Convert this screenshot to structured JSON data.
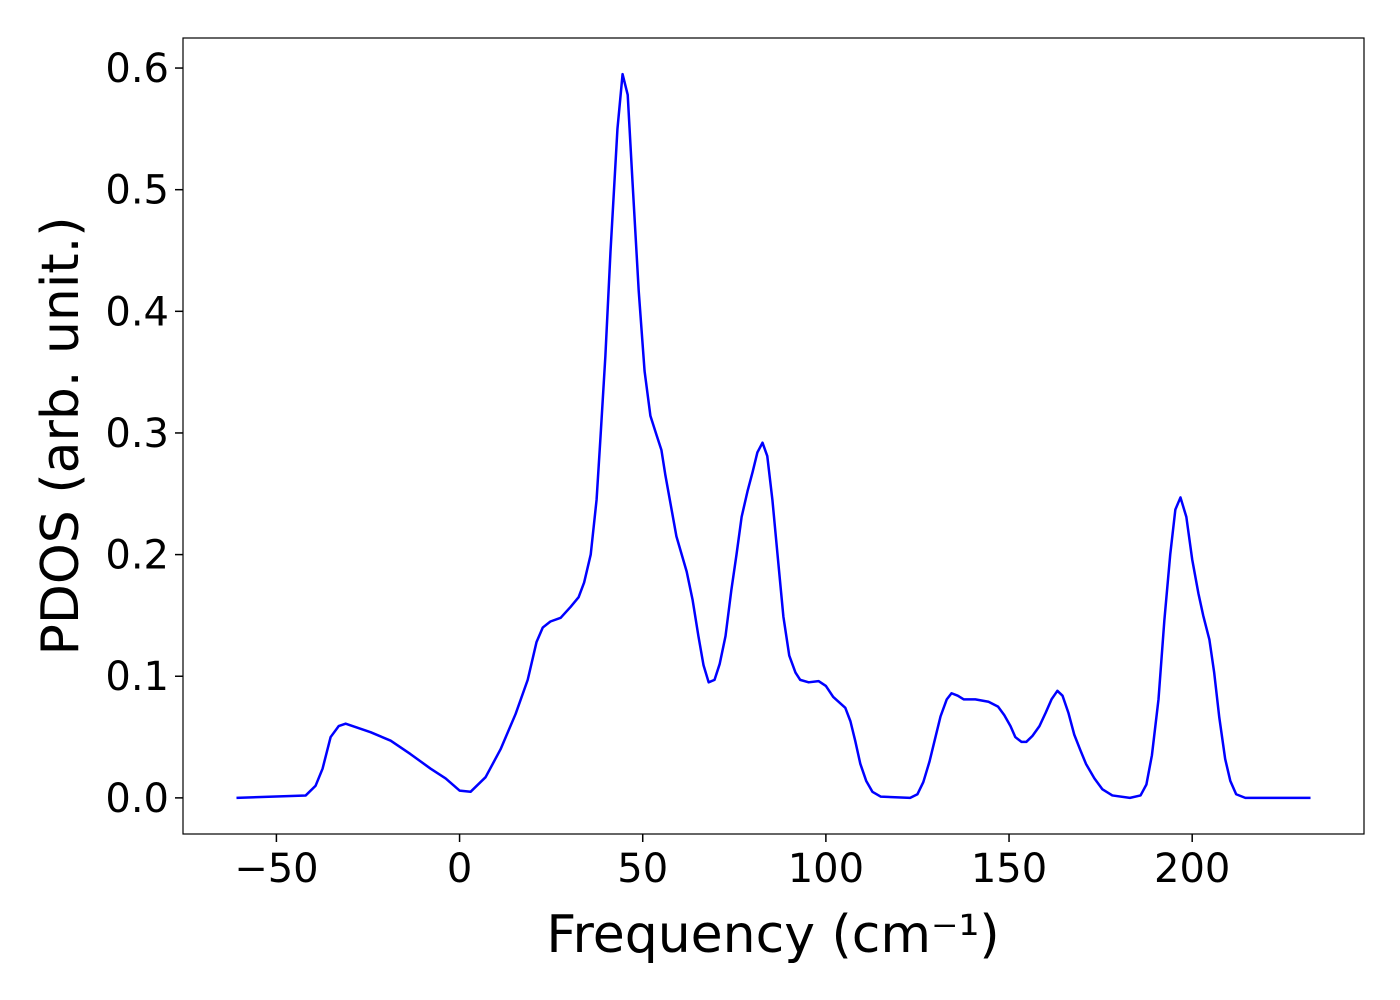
{
  "chart_data": {
    "type": "line",
    "xlabel": "Frequency (cm⁻¹)",
    "ylabel": "PDOS (arb. unit.)",
    "series": [
      {
        "name": "PDOS",
        "color": "#0000ff",
        "x": [
          -60.9,
          -42,
          -39.3,
          -37.4,
          -35.2,
          -33,
          -31.1,
          -24.3,
          -18.8,
          -13.4,
          -7.9,
          -3.8,
          0,
          3,
          7.1,
          11.2,
          15.3,
          18.6,
          21,
          22.7,
          24.8,
          27.6,
          30.3,
          32.5,
          34,
          35.8,
          37.4,
          38.5,
          39.8,
          41.2,
          43.1,
          44.5,
          45.9,
          47.2,
          48.9,
          50.5,
          52.1,
          53.8,
          55.1,
          56.2,
          59.2,
          62,
          63.6,
          65.2,
          66.6,
          68,
          69.6,
          71,
          72.6,
          74.2,
          75.6,
          77,
          78.6,
          80,
          81.3,
          82.7,
          84,
          85.4,
          86.8,
          88.4,
          90,
          91.7,
          93,
          95.3,
          98,
          100,
          102,
          105.3,
          106.7,
          108,
          109.4,
          111,
          112.7,
          115,
          123,
          125,
          126.6,
          128.3,
          130,
          131.3,
          133,
          134.3,
          136,
          137.6,
          140.8,
          144.4,
          147,
          148.7,
          150.4,
          151.7,
          153.4,
          154.7,
          156.4,
          158.3,
          160,
          161.6,
          163.2,
          164.6,
          166.2,
          167.8,
          169.5,
          171,
          173.3,
          175.5,
          178.2,
          183,
          185.9,
          187.5,
          189,
          190.8,
          192.4,
          194,
          195.4,
          196.8,
          198.4,
          200,
          201.7,
          203,
          204.7,
          206,
          207.4,
          209,
          210.4,
          212,
          214.5,
          232.3
        ],
        "values": [
          0,
          0.002,
          0.01,
          0.024,
          0.05,
          0.059,
          0.061,
          0.054,
          0.047,
          0.036,
          0.024,
          0.016,
          0.006,
          0.005,
          0.017,
          0.04,
          0.069,
          0.097,
          0.128,
          0.14,
          0.145,
          0.148,
          0.157,
          0.165,
          0.177,
          0.2,
          0.245,
          0.298,
          0.363,
          0.449,
          0.55,
          0.595,
          0.578,
          0.507,
          0.417,
          0.351,
          0.314,
          0.298,
          0.286,
          0.265,
          0.215,
          0.186,
          0.163,
          0.133,
          0.109,
          0.095,
          0.097,
          0.11,
          0.133,
          0.171,
          0.2,
          0.231,
          0.252,
          0.268,
          0.284,
          0.292,
          0.281,
          0.245,
          0.2,
          0.149,
          0.117,
          0.103,
          0.097,
          0.095,
          0.096,
          0.092,
          0.083,
          0.074,
          0.063,
          0.047,
          0.028,
          0.014,
          0.005,
          0.001,
          0,
          0.003,
          0.013,
          0.03,
          0.051,
          0.067,
          0.081,
          0.086,
          0.084,
          0.081,
          0.081,
          0.079,
          0.075,
          0.068,
          0.059,
          0.05,
          0.046,
          0.046,
          0.051,
          0.059,
          0.07,
          0.081,
          0.088,
          0.084,
          0.07,
          0.052,
          0.039,
          0.028,
          0.016,
          0.007,
          0.002,
          0,
          0.002,
          0.011,
          0.035,
          0.081,
          0.146,
          0.2,
          0.237,
          0.247,
          0.231,
          0.196,
          0.168,
          0.15,
          0.13,
          0.103,
          0.066,
          0.032,
          0.014,
          0.003,
          0,
          0
        ]
      }
    ],
    "xlim": [
      -75.5,
      246.9
    ],
    "ylim": [
      -0.0297,
      0.6247
    ],
    "xticks": [
      {
        "value": -50,
        "label": "−50"
      },
      0,
      50,
      100,
      150,
      200
    ],
    "yticks": [
      {
        "value": 0,
        "label": "0.0"
      },
      0.1,
      0.2,
      0.3,
      0.4,
      0.5,
      0.6
    ],
    "grid": false
  }
}
